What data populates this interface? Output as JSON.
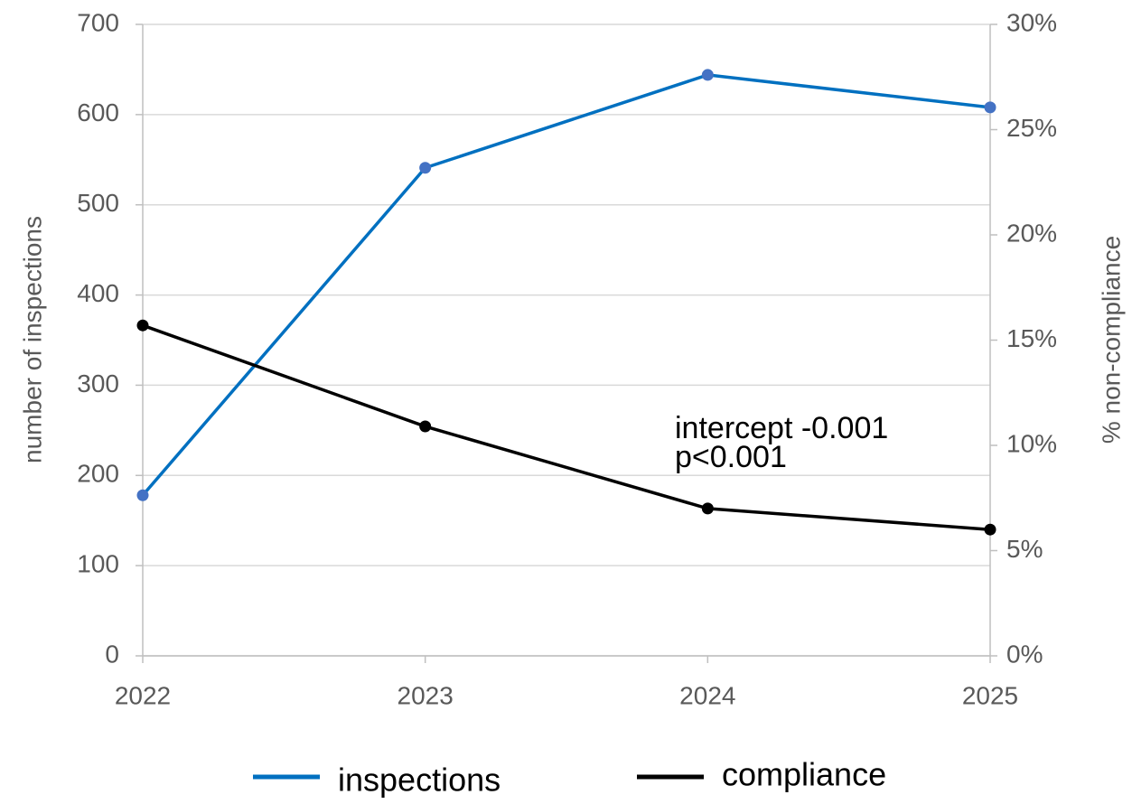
{
  "chart_data": {
    "type": "line",
    "x": [
      2022,
      2023,
      2024,
      2025
    ],
    "xlim": [
      2022,
      2025
    ],
    "xticks": [
      2022,
      2023,
      2024,
      2025
    ],
    "ylabel": "number of inspections",
    "y2label": "% non-compliance",
    "ylim": [
      0,
      700
    ],
    "yticks": [
      0,
      100,
      200,
      300,
      400,
      500,
      600,
      700
    ],
    "y2lim": [
      0,
      30
    ],
    "y2ticks": [
      {
        "value": 0,
        "label": "0%"
      },
      {
        "value": 5,
        "label": "5%"
      },
      {
        "value": 10,
        "label": "10%"
      },
      {
        "value": 15,
        "label": "15%"
      },
      {
        "value": 20,
        "label": "20%"
      },
      {
        "value": 25,
        "label": "25%"
      },
      {
        "value": 30,
        "label": "30%"
      }
    ],
    "grid": true,
    "legend": "bottom",
    "series": [
      {
        "name": "inspections",
        "color": "#0070c0",
        "marker_color": "#4472c4",
        "values": [
          178,
          541,
          644,
          608
        ]
      },
      {
        "name": "compliance",
        "color": "#000000",
        "marker_color": "#000000",
        "axis": "y2",
        "values": [
          15.7,
          10.9,
          7.0,
          6.0
        ]
      }
    ],
    "annotations": [
      "intercept -0.001",
      "p<0.001"
    ]
  }
}
